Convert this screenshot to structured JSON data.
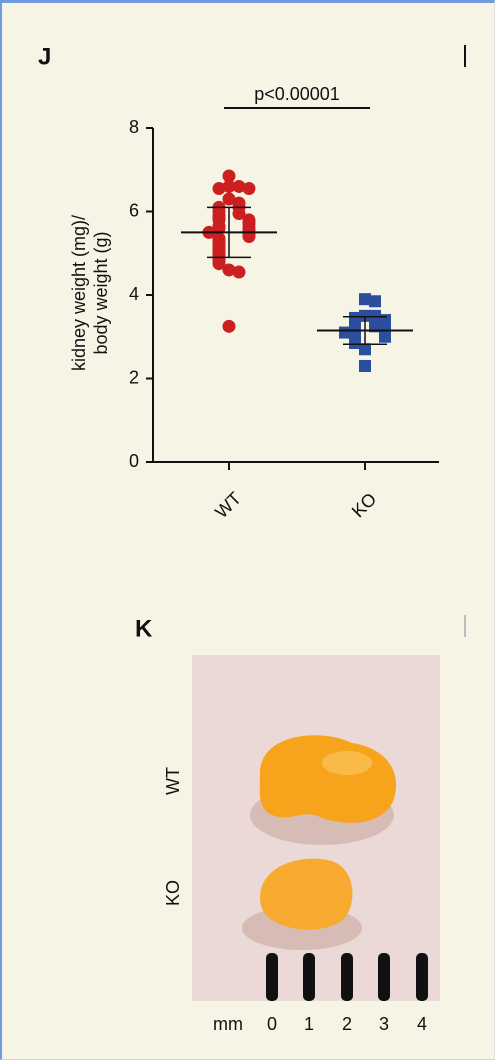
{
  "chart_data": {
    "type": "scatter",
    "panel_label": "J",
    "y_label": [
      "kidney weight (mg)/",
      "body weight (g)"
    ],
    "annotation": "p<0.00001",
    "categories": [
      "WT",
      "KO"
    ],
    "series": [
      {
        "name": "WT",
        "color": "#cc1f1f",
        "marker": "circle",
        "values": [
          6.85,
          6.6,
          6.6,
          6.55,
          6.55,
          6.3,
          6.2,
          6.1,
          6.1,
          6.0,
          5.95,
          5.9,
          5.85,
          5.8,
          5.8,
          5.75,
          5.7,
          5.65,
          5.6,
          5.6,
          5.55,
          5.5,
          5.5,
          5.45,
          5.4,
          5.35,
          5.3,
          5.25,
          5.2,
          5.15,
          5.1,
          5.05,
          5.0,
          4.95,
          4.9,
          4.85,
          4.8,
          4.75,
          4.6,
          4.55,
          3.25
        ],
        "mean": 5.5,
        "sd": 0.6
      },
      {
        "name": "KO",
        "color": "#2b4f9e",
        "marker": "square",
        "values": [
          3.9,
          3.85,
          3.5,
          3.5,
          3.45,
          3.4,
          3.3,
          3.25,
          3.2,
          3.2,
          3.15,
          3.1,
          3.1,
          3.05,
          3.0,
          2.95,
          2.9,
          2.85,
          2.7,
          2.3
        ],
        "mean": 3.15,
        "sd": 0.33
      }
    ],
    "ylim": [
      0,
      8
    ],
    "yticks": [
      0,
      2,
      4,
      6,
      8
    ],
    "grid": false
  },
  "photo": {
    "panel_label": "K",
    "row_labels": [
      "WT",
      "KO"
    ],
    "scale_unit": "mm",
    "scale_ticks": [
      "0",
      "1",
      "2",
      "3",
      "4"
    ]
  }
}
